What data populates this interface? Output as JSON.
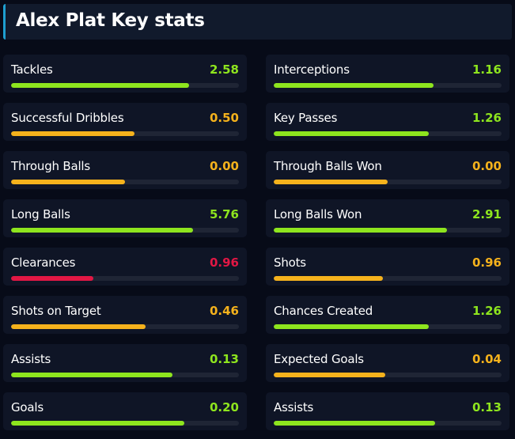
{
  "header": {
    "title": "Alex Plat Key stats"
  },
  "colors": {
    "green": "#8ee51e",
    "orange": "#f5b21c",
    "red": "#e21744"
  },
  "stats": [
    {
      "label": "Tackles",
      "value": "2.58",
      "fill": 0.78,
      "color": "green"
    },
    {
      "label": "Interceptions",
      "value": "1.16",
      "fill": 0.7,
      "color": "green"
    },
    {
      "label": "Successful Dribbles",
      "value": "0.50",
      "fill": 0.54,
      "color": "orange"
    },
    {
      "label": "Key Passes",
      "value": "1.26",
      "fill": 0.68,
      "color": "green"
    },
    {
      "label": "Through Balls",
      "value": "0.00",
      "fill": 0.5,
      "color": "orange"
    },
    {
      "label": "Through Balls Won",
      "value": "0.00",
      "fill": 0.5,
      "color": "orange"
    },
    {
      "label": "Long Balls",
      "value": "5.76",
      "fill": 0.8,
      "color": "green"
    },
    {
      "label": "Long Balls Won",
      "value": "2.91",
      "fill": 0.76,
      "color": "green"
    },
    {
      "label": "Clearances",
      "value": "0.96",
      "fill": 0.36,
      "color": "red"
    },
    {
      "label": "Shots",
      "value": "0.96",
      "fill": 0.48,
      "color": "orange"
    },
    {
      "label": "Shots on Target",
      "value": "0.46",
      "fill": 0.59,
      "color": "orange"
    },
    {
      "label": "Chances Created",
      "value": "1.26",
      "fill": 0.68,
      "color": "green"
    },
    {
      "label": "Assists",
      "value": "0.13",
      "fill": 0.71,
      "color": "green"
    },
    {
      "label": "Expected Goals",
      "value": "0.04",
      "fill": 0.49,
      "color": "orange"
    },
    {
      "label": "Goals",
      "value": "0.20",
      "fill": 0.76,
      "color": "green"
    },
    {
      "label": "Assists",
      "value": "0.13",
      "fill": 0.71,
      "color": "green"
    }
  ]
}
